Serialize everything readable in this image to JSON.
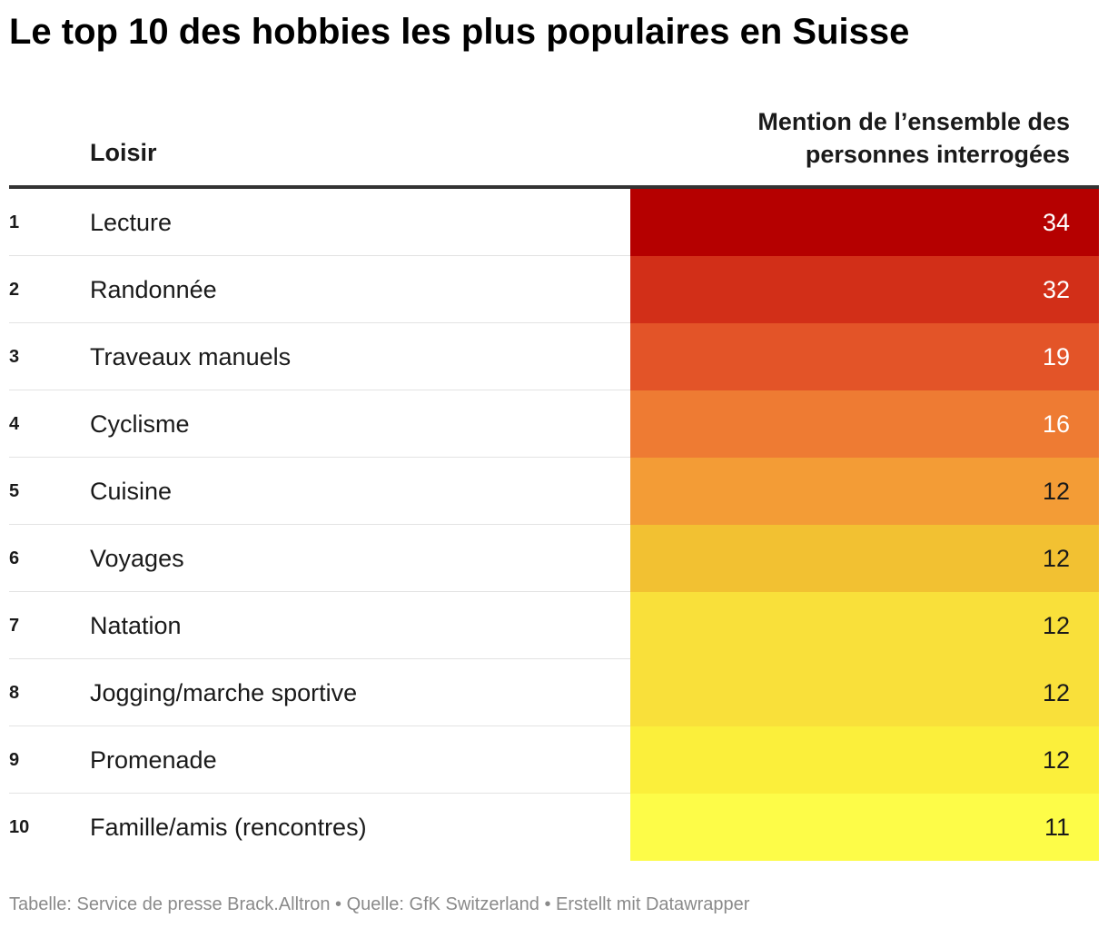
{
  "chart_data": {
    "type": "table",
    "title": "Le top 10 des hobbies les plus populaires en Suisse",
    "columns": {
      "name": "Loisir",
      "value": "Mention de l’ensemble des personnes interrogées"
    },
    "rows": [
      {
        "rank": "1",
        "name": "Lecture",
        "value": 34,
        "color": "#b50000",
        "text_color": "#ffffff"
      },
      {
        "rank": "2",
        "name": "Randonnée",
        "value": 32,
        "color": "#d22f18",
        "text_color": "#ffffff"
      },
      {
        "rank": "3",
        "name": "Traveaux manuels",
        "value": 19,
        "color": "#e35428",
        "text_color": "#ffffff"
      },
      {
        "rank": "4",
        "name": "Cyclisme",
        "value": 16,
        "color": "#ee7b33",
        "text_color": "#ffffff"
      },
      {
        "rank": "5",
        "name": "Cuisine",
        "value": 12,
        "color": "#f39c36",
        "text_color": "#1a1a1a"
      },
      {
        "rank": "6",
        "name": "Voyages",
        "value": 12,
        "color": "#f2c132",
        "text_color": "#1a1a1a"
      },
      {
        "rank": "7",
        "name": "Natation",
        "value": 12,
        "color": "#f9e03a",
        "text_color": "#1a1a1a"
      },
      {
        "rank": "8",
        "name": "Jogging/marche sportive",
        "value": 12,
        "color": "#f9e03a",
        "text_color": "#1a1a1a"
      },
      {
        "rank": "9",
        "name": "Promenade",
        "value": 12,
        "color": "#fbef3b",
        "text_color": "#1a1a1a"
      },
      {
        "rank": "10",
        "name": "Famille/amis (rencontres)",
        "value": 11,
        "color": "#fdfc48",
        "text_color": "#1a1a1a"
      }
    ],
    "source": "Tabelle: Service de presse Brack.Alltron • Quelle: GfK Switzerland • Erstellt mit Datawrapper"
  }
}
